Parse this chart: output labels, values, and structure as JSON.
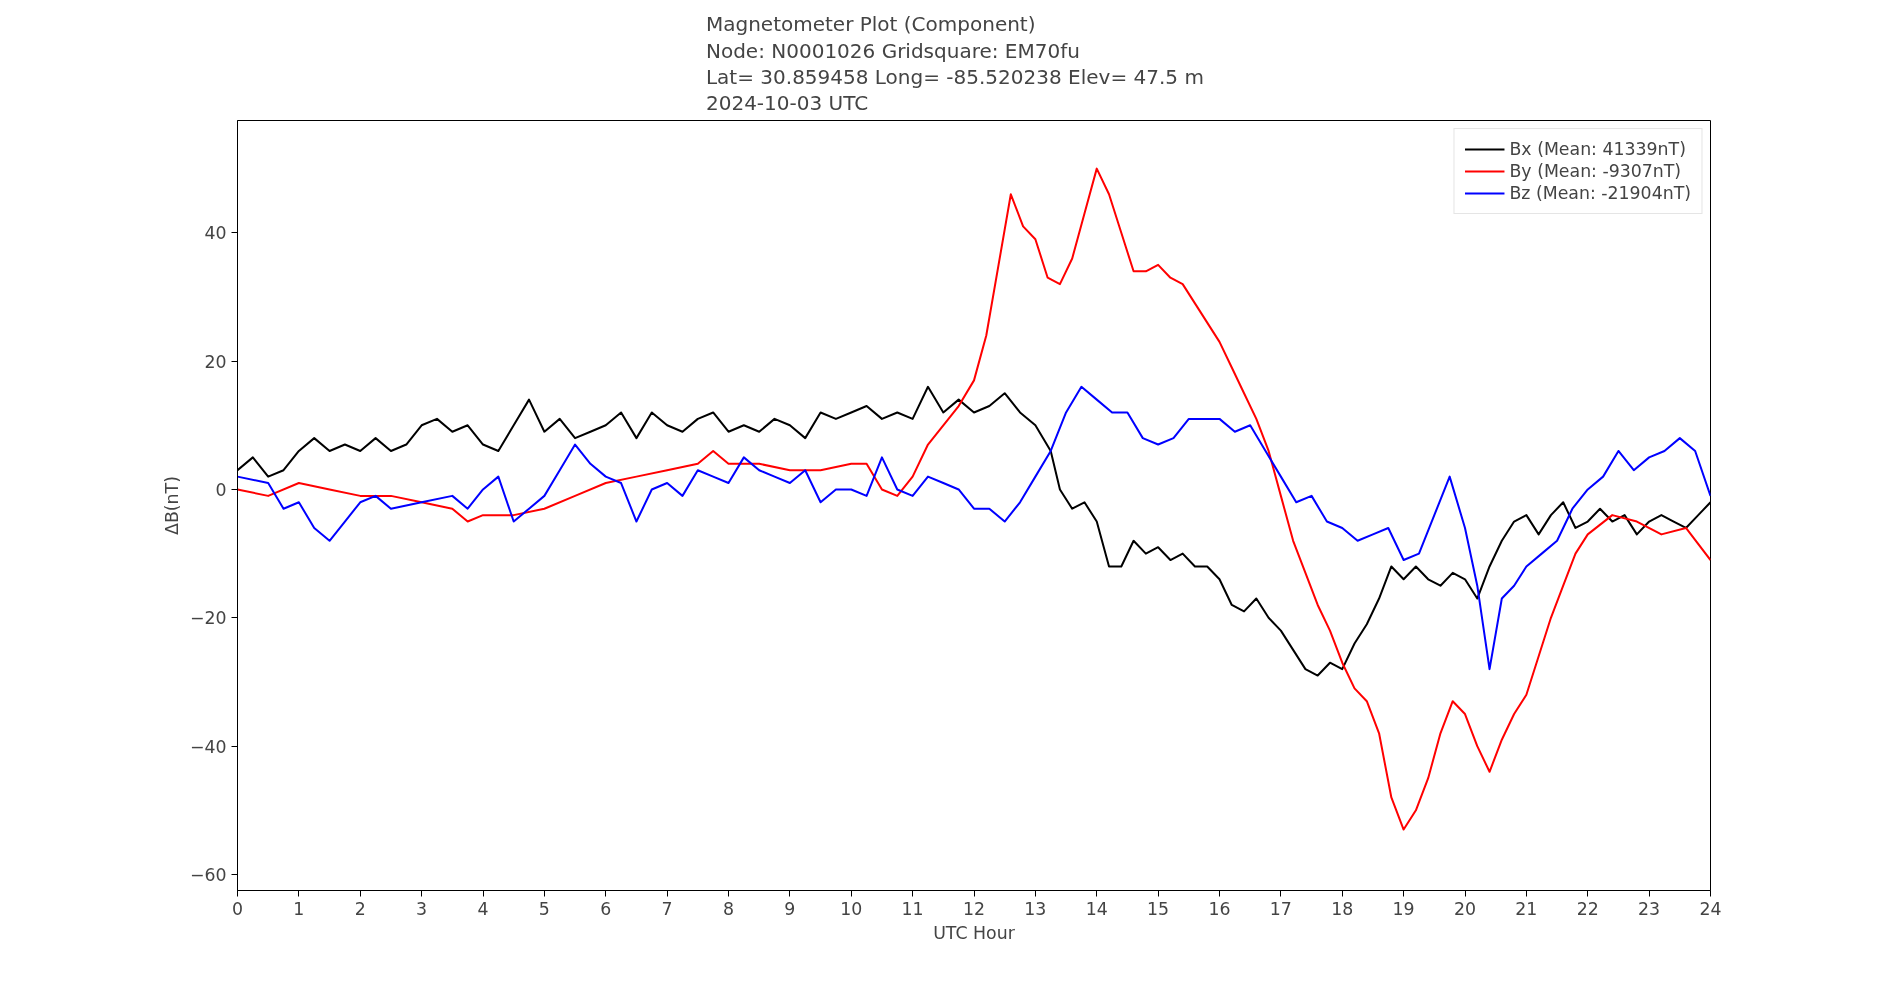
{
  "chart_data": {
    "type": "line",
    "title": "Magnetometer Plot (Component)\nNode:  N0001026     Gridsquare:  EM70fu\nLat= 30.859458    Long= -85.520238    Elev= 47.5 m\n2024-10-03  UTC",
    "xlabel": "UTC Hour",
    "ylabel": "ΔB(nT)",
    "xlim": [
      0,
      24
    ],
    "ylim": [
      -62.5,
      57.5
    ],
    "xticks": [
      0,
      1,
      2,
      3,
      4,
      5,
      6,
      7,
      8,
      9,
      10,
      11,
      12,
      13,
      14,
      15,
      16,
      17,
      18,
      19,
      20,
      21,
      22,
      23,
      24
    ],
    "yticks": [
      -60,
      -40,
      -20,
      0,
      20,
      40
    ],
    "grid": false,
    "legend": "top right",
    "line_style": "solid",
    "marker": "none",
    "series": [
      {
        "name": "Bx (Mean: 41339nT)",
        "color": "#000000",
        "x": [
          0,
          0.25,
          0.5,
          0.75,
          1,
          1.25,
          1.5,
          1.75,
          2,
          2.25,
          2.5,
          2.75,
          3,
          3.25,
          3.5,
          3.75,
          4,
          4.25,
          4.5,
          4.75,
          5,
          5.25,
          5.5,
          5.75,
          6,
          6.25,
          6.5,
          6.75,
          7,
          7.25,
          7.5,
          7.75,
          8,
          8.25,
          8.5,
          8.75,
          9,
          9.25,
          9.5,
          9.75,
          10,
          10.25,
          10.5,
          10.75,
          11,
          11.25,
          11.5,
          11.75,
          12,
          12.25,
          12.5,
          12.75,
          13,
          13.25,
          13.4,
          13.6,
          13.8,
          14,
          14.2,
          14.4,
          14.6,
          14.8,
          15,
          15.2,
          15.4,
          15.6,
          15.8,
          16,
          16.2,
          16.4,
          16.6,
          16.8,
          17,
          17.2,
          17.4,
          17.6,
          17.8,
          18,
          18.2,
          18.4,
          18.6,
          18.8,
          19,
          19.2,
          19.4,
          19.6,
          19.8,
          20,
          20.2,
          20.4,
          20.6,
          20.8,
          21,
          21.2,
          21.4,
          21.6,
          21.8,
          22,
          22.2,
          22.4,
          22.6,
          22.8,
          23,
          23.2,
          23.4,
          23.6,
          23.8,
          24
        ],
        "values": [
          3,
          5,
          2,
          3,
          6,
          8,
          6,
          7,
          6,
          8,
          6,
          7,
          10,
          11,
          9,
          10,
          7,
          6,
          10,
          14,
          9,
          11,
          8,
          9,
          10,
          12,
          8,
          12,
          10,
          9,
          11,
          12,
          9,
          10,
          9,
          11,
          10,
          8,
          12,
          11,
          12,
          13,
          11,
          12,
          11,
          16,
          12,
          14,
          12,
          13,
          15,
          12,
          10,
          6,
          0,
          -3,
          -2,
          -5,
          -12,
          -12,
          -8,
          -10,
          -9,
          -11,
          -10,
          -12,
          -12,
          -14,
          -18,
          -19,
          -17,
          -20,
          -22,
          -25,
          -28,
          -29,
          -27,
          -28,
          -24,
          -21,
          -17,
          -12,
          -14,
          -12,
          -14,
          -15,
          -13,
          -14,
          -17,
          -12,
          -8,
          -5,
          -4,
          -7,
          -4,
          -2,
          -6,
          -5,
          -3,
          -5,
          -4,
          -7,
          -5,
          -4,
          -5,
          -6,
          -4,
          -2
        ]
      },
      {
        "name": "By (Mean: -9307nT)",
        "color": "#ff0000",
        "x": [
          0,
          0.5,
          1,
          1.5,
          2,
          2.5,
          3,
          3.5,
          3.75,
          4,
          4.5,
          5,
          5.5,
          6,
          6.5,
          7,
          7.5,
          7.75,
          8,
          8.5,
          9,
          9.5,
          10,
          10.25,
          10.5,
          10.75,
          11,
          11.25,
          11.5,
          11.75,
          12,
          12.2,
          12.4,
          12.6,
          12.8,
          13,
          13.2,
          13.4,
          13.6,
          13.8,
          14,
          14.2,
          14.4,
          14.6,
          14.8,
          15,
          15.2,
          15.4,
          15.6,
          15.8,
          16,
          16.2,
          16.4,
          16.6,
          16.8,
          17,
          17.2,
          17.4,
          17.6,
          17.8,
          18,
          18.2,
          18.4,
          18.6,
          18.8,
          19,
          19.2,
          19.4,
          19.6,
          19.8,
          20,
          20.2,
          20.4,
          20.6,
          20.8,
          21,
          21.2,
          21.4,
          21.6,
          21.8,
          22,
          22.4,
          22.8,
          23.2,
          23.6,
          24
        ],
        "values": [
          0,
          -1,
          1,
          0,
          -1,
          -1,
          -2,
          -3,
          -5,
          -4,
          -4,
          -3,
          -1,
          1,
          2,
          3,
          4,
          6,
          4,
          4,
          3,
          3,
          4,
          4,
          0,
          -1,
          2,
          7,
          10,
          13,
          17,
          24,
          35,
          46,
          41,
          39,
          33,
          32,
          36,
          43,
          50,
          46,
          40,
          34,
          34,
          35,
          33,
          32,
          29,
          26,
          23,
          19,
          15,
          11,
          6,
          -1,
          -8,
          -13,
          -18,
          -22,
          -27,
          -31,
          -33,
          -38,
          -48,
          -53,
          -50,
          -45,
          -38,
          -33,
          -35,
          -40,
          -44,
          -39,
          -35,
          -32,
          -26,
          -20,
          -15,
          -10,
          -7,
          -4,
          -5,
          -7,
          -6,
          -11
        ]
      },
      {
        "name": "Bz (Mean: -21904nT)",
        "color": "#0000ff",
        "x": [
          0,
          0.5,
          0.75,
          1,
          1.25,
          1.5,
          1.75,
          2,
          2.25,
          2.5,
          3,
          3.5,
          3.75,
          4,
          4.25,
          4.5,
          4.75,
          5,
          5.25,
          5.5,
          5.75,
          6,
          6.25,
          6.5,
          6.75,
          7,
          7.25,
          7.5,
          7.75,
          8,
          8.25,
          8.5,
          8.75,
          9,
          9.25,
          9.5,
          9.75,
          10,
          10.25,
          10.5,
          10.75,
          11,
          11.25,
          11.5,
          11.75,
          12,
          12.25,
          12.5,
          12.75,
          13,
          13.25,
          13.5,
          13.75,
          14,
          14.25,
          14.5,
          14.75,
          15,
          15.25,
          15.5,
          15.75,
          16,
          16.25,
          16.5,
          16.75,
          17,
          17.25,
          17.5,
          17.75,
          18,
          18.25,
          18.5,
          18.75,
          19,
          19.25,
          19.5,
          19.75,
          20,
          20.2,
          20.4,
          20.6,
          20.8,
          21,
          21.25,
          21.5,
          21.75,
          22,
          22.25,
          22.5,
          22.75,
          23,
          23.25,
          23.5,
          23.75,
          24
        ],
        "values": [
          2,
          1,
          -3,
          -2,
          -6,
          -8,
          -5,
          -2,
          -1,
          -3,
          -2,
          -1,
          -3,
          0,
          2,
          -5,
          -3,
          -1,
          3,
          7,
          4,
          2,
          1,
          -5,
          0,
          1,
          -1,
          3,
          2,
          1,
          5,
          3,
          2,
          1,
          3,
          -2,
          0,
          0,
          -1,
          5,
          0,
          -1,
          2,
          1,
          0,
          -3,
          -3,
          -5,
          -2,
          2,
          6,
          12,
          16,
          14,
          12,
          12,
          8,
          7,
          8,
          11,
          11,
          11,
          9,
          10,
          6,
          2,
          -2,
          -1,
          -5,
          -6,
          -8,
          -7,
          -6,
          -11,
          -10,
          -4,
          2,
          -6,
          -15,
          -28,
          -17,
          -15,
          -12,
          -10,
          -8,
          -3,
          0,
          2,
          6,
          3,
          5,
          6,
          8,
          6,
          -1
        ]
      }
    ]
  }
}
